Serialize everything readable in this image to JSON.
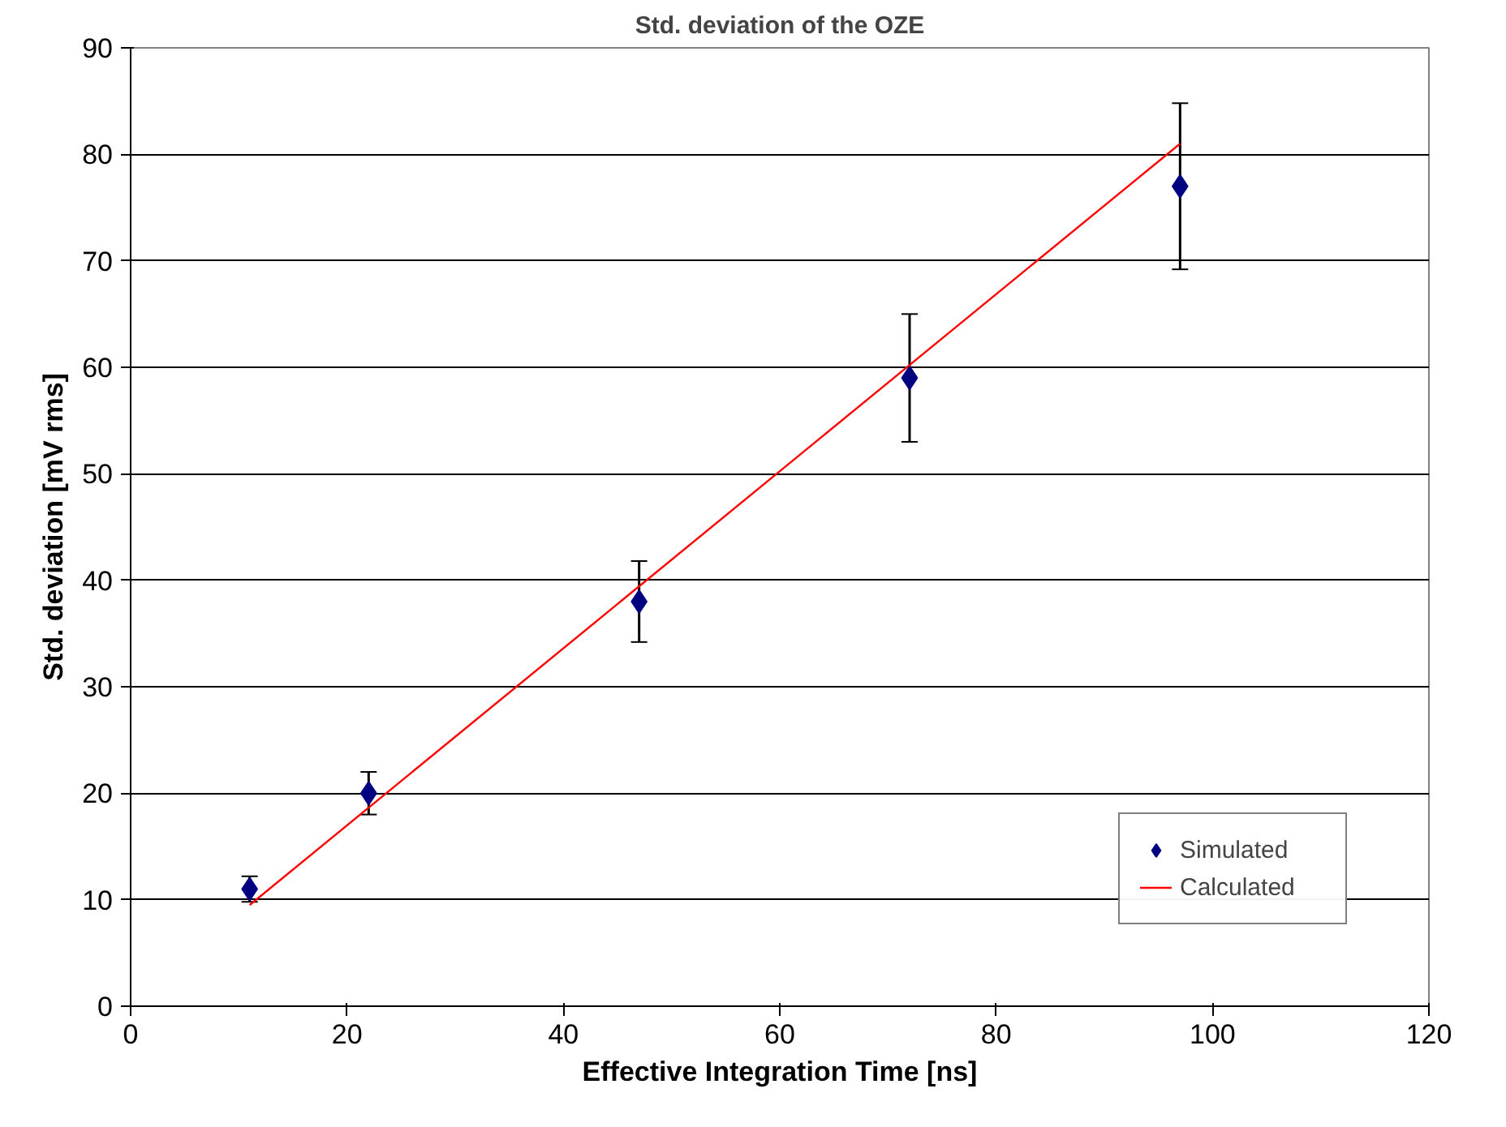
{
  "chart_data": {
    "type": "scatter",
    "title": "Std. deviation of the OZE",
    "xlabel": "Effective Integration Time [ns]",
    "ylabel": "Std. deviation [mV rms]",
    "xlim": [
      0,
      120
    ],
    "xticks": [
      0,
      20,
      40,
      60,
      80,
      100,
      120
    ],
    "ylim": [
      0,
      90
    ],
    "yticks": [
      0,
      10,
      20,
      30,
      40,
      50,
      60,
      70,
      80,
      90
    ],
    "grid": "y",
    "legend": "bottom right",
    "series": [
      {
        "name": "Simulated",
        "color": "#000080",
        "marker": "diamond",
        "x": [
          11,
          22,
          47,
          72,
          97
        ],
        "values": [
          11,
          20,
          38,
          59,
          77
        ],
        "errors": [
          1.2,
          2,
          3.8,
          6,
          7.8
        ]
      },
      {
        "name": "Calculated",
        "type": "line",
        "color": "#ff0000",
        "line_style": "solid",
        "x": [
          11,
          97
        ],
        "values": [
          9.5,
          81
        ]
      }
    ]
  }
}
